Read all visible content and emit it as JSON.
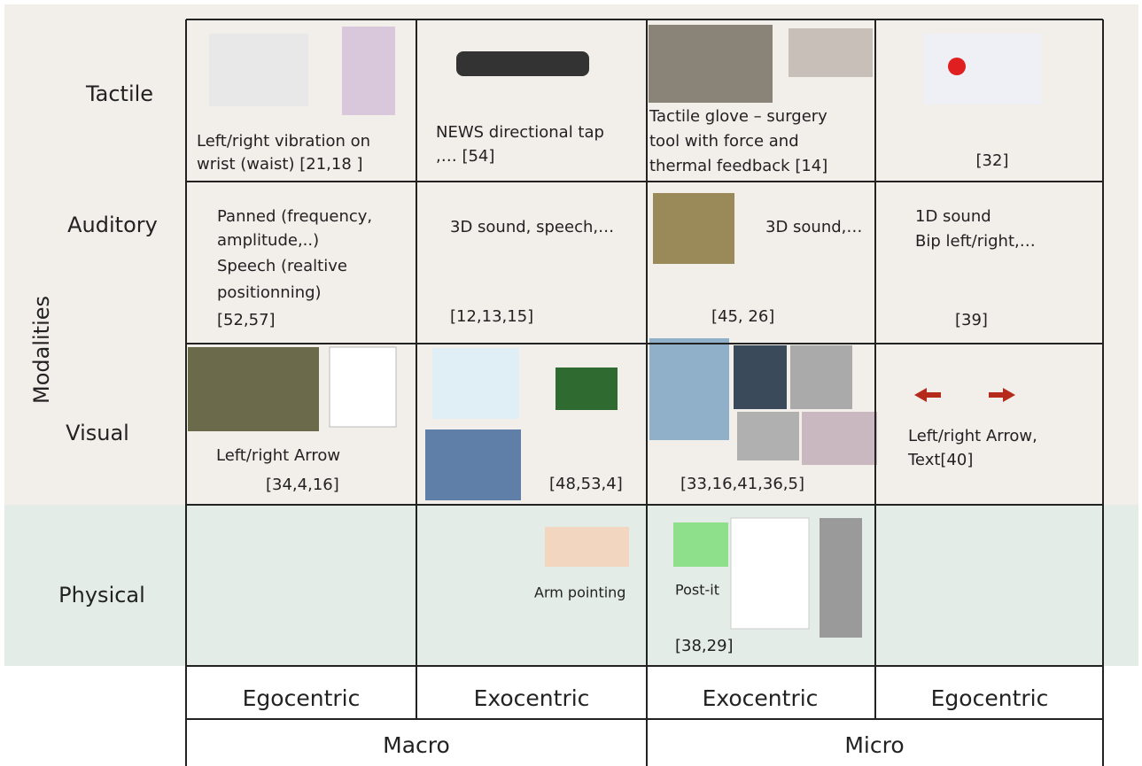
{
  "axis_label": "Modalities",
  "rows": [
    {
      "label": "Tactile",
      "cells": [
        [
          "Left/right vibration on",
          "wrist (waist) [21,18 ]"
        ],
        [
          "NEWS directional tap",
          ",… [54]"
        ],
        [
          "Tactile glove – surgery",
          "tool with force and",
          "thermal feedback [14]"
        ],
        [
          "[32]"
        ]
      ]
    },
    {
      "label": "Auditory",
      "cells": [
        [
          "Panned (frequency,",
          "amplitude,..)",
          "Speech (realtive",
          "positionning)",
          "[52,57]"
        ],
        [
          "3D sound, speech,…",
          "[12,13,15]"
        ],
        [
          "3D sound,…",
          "[45, 26]"
        ],
        [
          "1D sound",
          "Bip left/right,…",
          "[39]"
        ]
      ]
    },
    {
      "label": "Visual",
      "cells": [
        [
          "Left/right  Arrow",
          "[34,4,16]"
        ],
        [
          "[48,53,4]"
        ],
        [
          "[33,16,41,36,5]"
        ],
        [
          "Left/right  Arrow,",
          "Text[40]"
        ]
      ]
    },
    {
      "label": "Physical",
      "cells": [
        [],
        [
          "Arm pointing"
        ],
        [
          "Post-it",
          "[38,29]"
        ],
        []
      ]
    }
  ],
  "frames": [
    "Egocentric",
    "Exocentric",
    "Exocentric",
    "Egocentric"
  ],
  "scales": [
    "Macro",
    "Micro"
  ]
}
